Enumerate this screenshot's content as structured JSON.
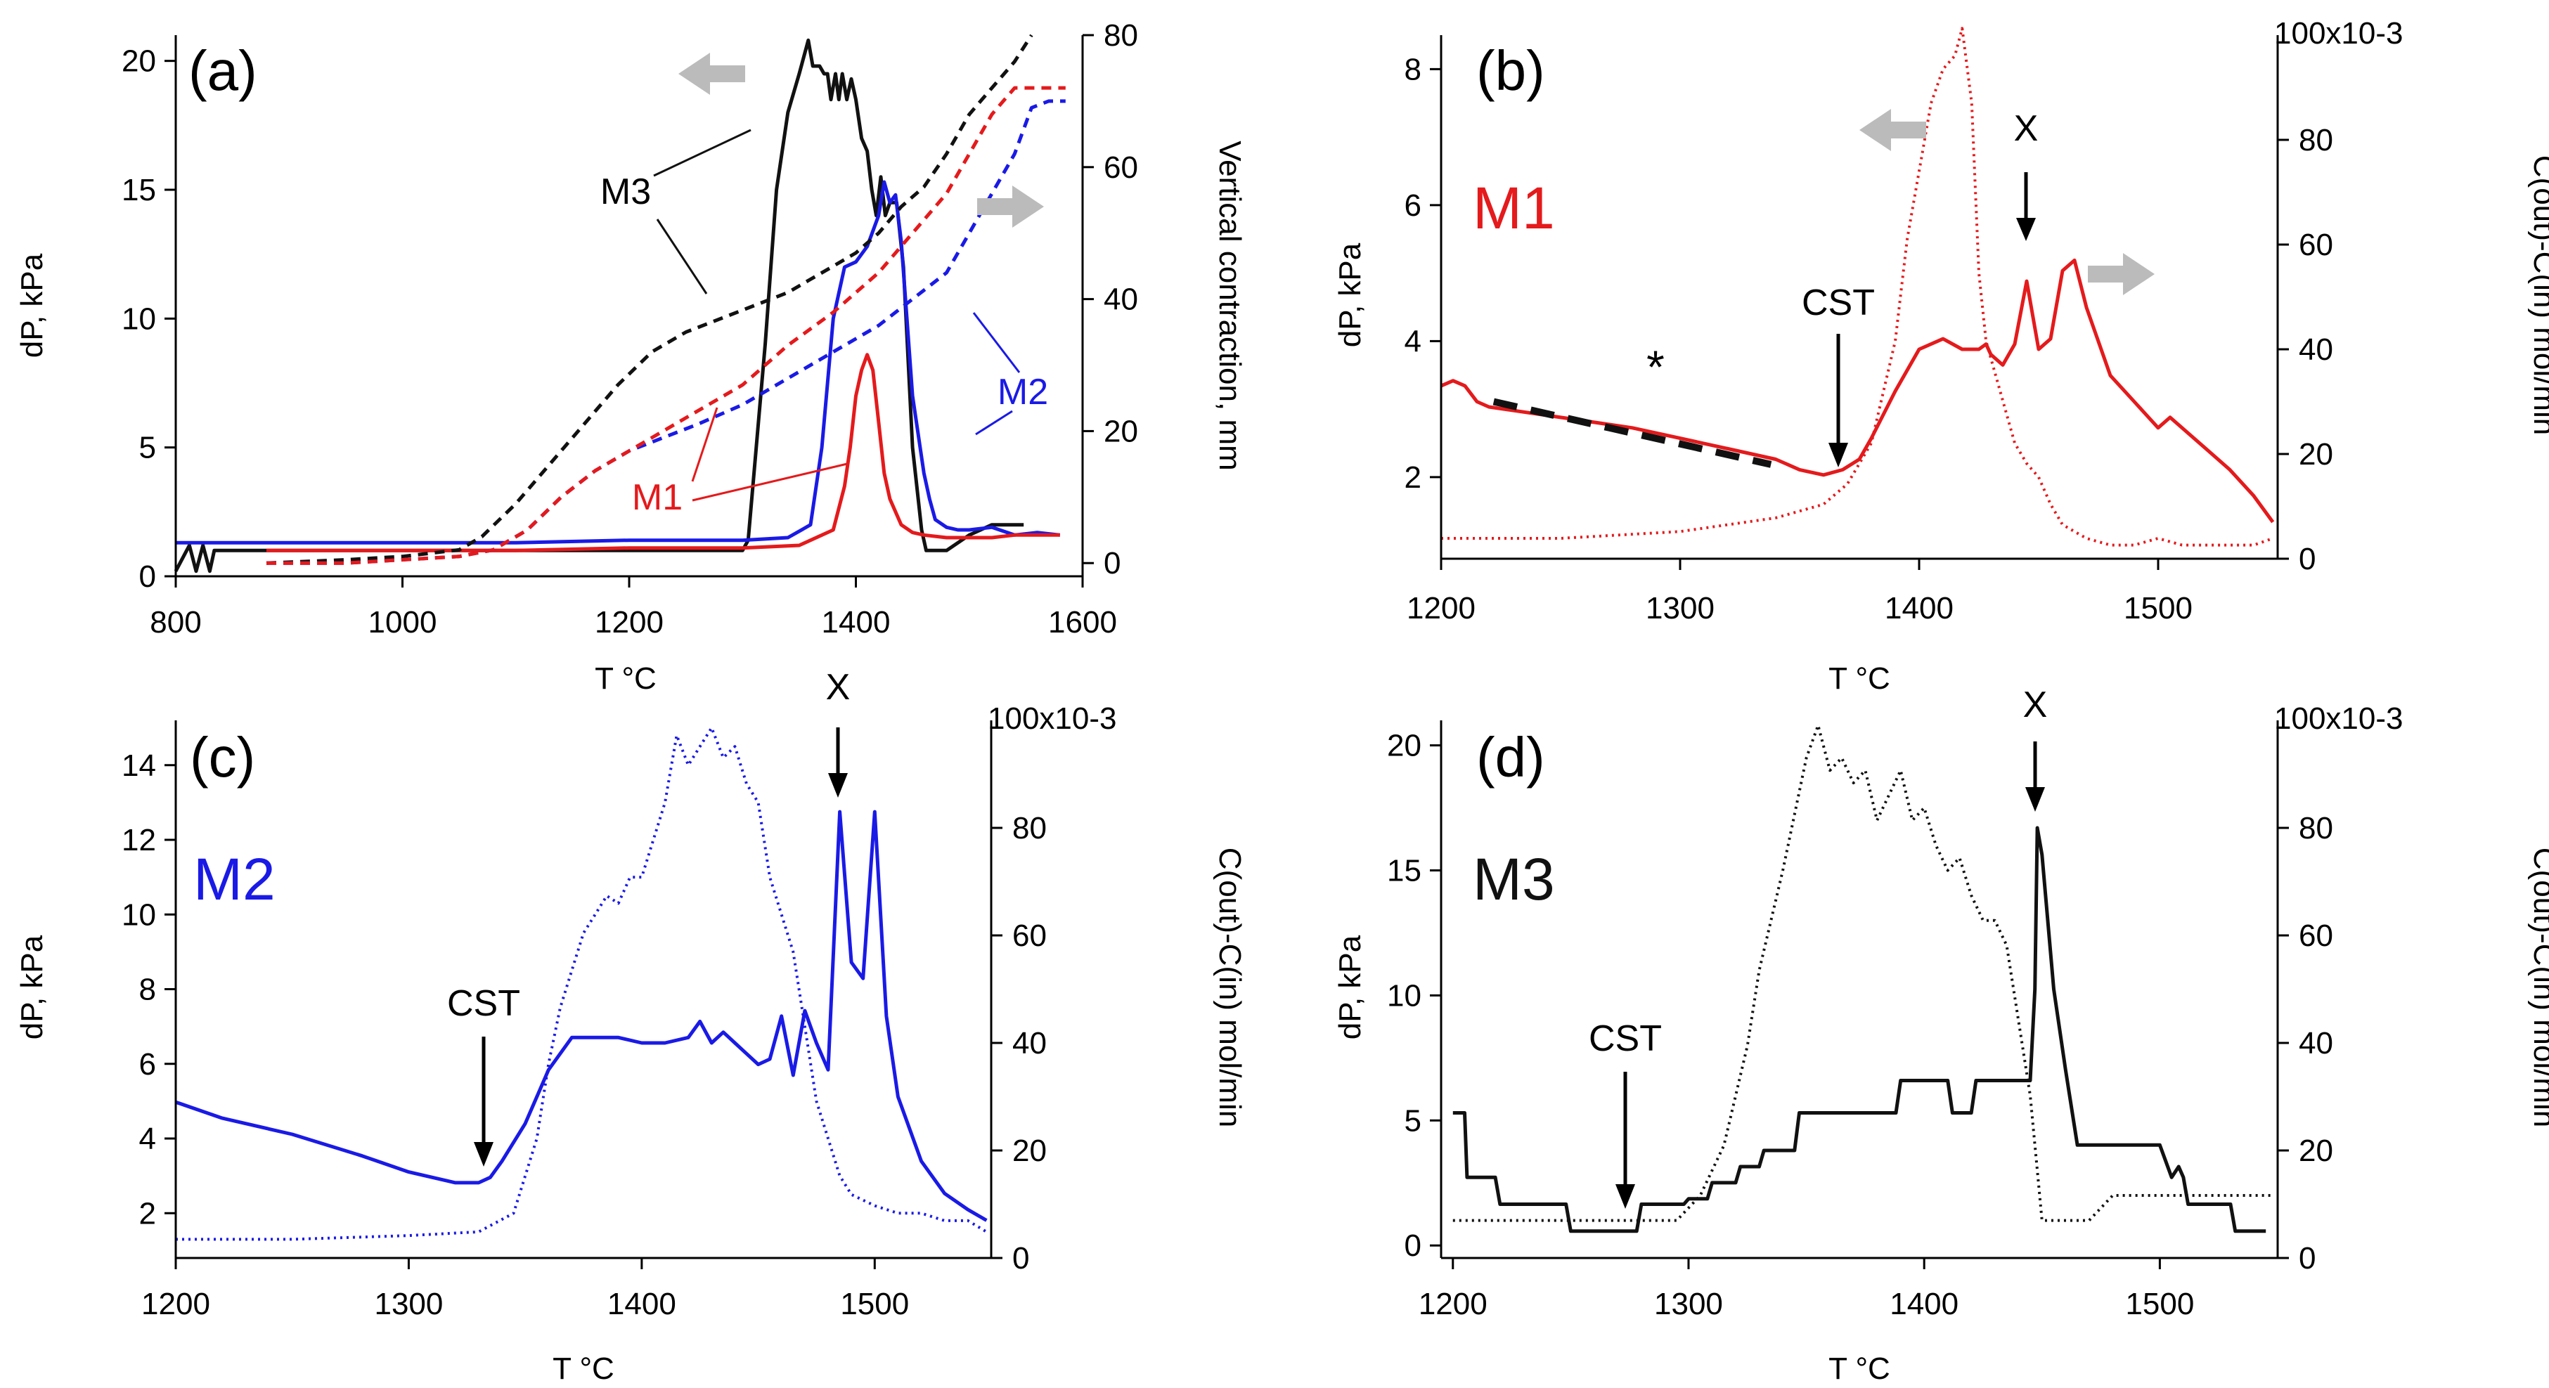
{
  "colors": {
    "M1": "#e41a1c",
    "M2": "#1a1ae6",
    "M3": "#111111",
    "arrow_grey": "#bbbbbb"
  },
  "chart_data": [
    {
      "panel": "(a)",
      "type": "line",
      "xlabel": "T °C",
      "ylabel_left": "dP, kPa",
      "ylabel_right": "Vertical contraction, mm",
      "xlim": [
        800,
        1600
      ],
      "ylim_left": [
        0,
        21
      ],
      "ylim_right": [
        -2,
        80
      ],
      "xticks": [
        800,
        1000,
        1200,
        1400,
        1600
      ],
      "yticks_left": [
        0,
        5,
        10,
        15,
        20
      ],
      "yticks_right": [
        0,
        20,
        40,
        60,
        80
      ],
      "series": [
        {
          "name": "M3",
          "axis": "left",
          "style": "solid",
          "color": "#111111",
          "x": [
            800,
            812,
            818,
            824,
            830,
            834,
            1300,
            1305,
            1320,
            1330,
            1340,
            1350,
            1358,
            1362,
            1368,
            1372,
            1375,
            1378,
            1382,
            1385,
            1388,
            1392,
            1396,
            1400,
            1405,
            1410,
            1414,
            1418,
            1422,
            1426,
            1430,
            1436,
            1442,
            1450,
            1458,
            1462,
            1470,
            1480,
            1500,
            1520,
            1548
          ],
          "y": [
            0.2,
            1.2,
            0.2,
            1.2,
            0.2,
            1.0,
            1.0,
            1.4,
            9.0,
            15.0,
            18.0,
            19.5,
            20.8,
            19.8,
            19.8,
            19.5,
            19.5,
            18.5,
            19.5,
            18.5,
            19.5,
            18.5,
            19.3,
            18.5,
            17.0,
            16.5,
            15.0,
            14.0,
            15.5,
            14.0,
            14.5,
            14.5,
            12.0,
            5.0,
            1.8,
            1.0,
            1.0,
            1.0,
            1.6,
            2.0,
            2.0
          ]
        },
        {
          "name": "M2",
          "axis": "left",
          "style": "solid",
          "color": "#1a1ae6",
          "x": [
            800,
            900,
            1000,
            1100,
            1200,
            1300,
            1340,
            1360,
            1370,
            1380,
            1390,
            1400,
            1410,
            1420,
            1425,
            1430,
            1435,
            1440,
            1445,
            1450,
            1455,
            1460,
            1465,
            1470,
            1480,
            1490,
            1500,
            1520,
            1540,
            1560,
            1580
          ],
          "y": [
            1.3,
            1.3,
            1.3,
            1.3,
            1.4,
            1.4,
            1.5,
            2.0,
            5.0,
            10.0,
            12.0,
            12.2,
            12.8,
            14.0,
            15.3,
            14.5,
            14.8,
            13.0,
            10.0,
            7.0,
            5.5,
            4.0,
            3.0,
            2.2,
            1.9,
            1.8,
            1.8,
            1.9,
            1.6,
            1.7,
            1.6
          ]
        },
        {
          "name": "M1",
          "axis": "left",
          "style": "solid",
          "color": "#e41a1c",
          "x": [
            880,
            1000,
            1100,
            1200,
            1300,
            1350,
            1380,
            1390,
            1395,
            1400,
            1405,
            1410,
            1415,
            1420,
            1425,
            1430,
            1435,
            1440,
            1450,
            1460,
            1480,
            1500,
            1520,
            1540,
            1560,
            1580
          ],
          "y": [
            1.0,
            1.0,
            1.0,
            1.1,
            1.1,
            1.2,
            1.8,
            3.5,
            5.0,
            7.0,
            8.0,
            8.6,
            8.0,
            6.0,
            4.0,
            3.0,
            2.5,
            2.0,
            1.7,
            1.6,
            1.5,
            1.5,
            1.5,
            1.6,
            1.6,
            1.6
          ]
        },
        {
          "name": "M3",
          "axis": "right",
          "style": "dashed",
          "color": "#111111",
          "x": [
            880,
            950,
            1000,
            1050,
            1070,
            1100,
            1130,
            1160,
            1190,
            1220,
            1250,
            1280,
            1310,
            1340,
            1360,
            1380,
            1400,
            1420,
            1440,
            1460,
            1480,
            1500,
            1520,
            1540,
            1555
          ],
          "y": [
            0,
            0.5,
            1.0,
            2.0,
            4.0,
            9.0,
            15.0,
            21.0,
            27.0,
            32.0,
            35.0,
            37.0,
            39.0,
            41.0,
            43.0,
            45.0,
            47.0,
            50.0,
            54.0,
            57.0,
            62.0,
            68.0,
            72.0,
            76.0,
            80.0
          ]
        },
        {
          "name": "M2",
          "axis": "right",
          "style": "dashed",
          "color": "#1a1ae6",
          "x": [
            880,
            950,
            1000,
            1050,
            1080,
            1110,
            1140,
            1170,
            1200,
            1230,
            1260,
            1300,
            1340,
            1380,
            1420,
            1450,
            1480,
            1500,
            1520,
            1540,
            1555,
            1570,
            1585
          ],
          "y": [
            0,
            0,
            0.5,
            1.0,
            2.0,
            5.0,
            10.0,
            14.0,
            17.0,
            19.0,
            21.0,
            24.0,
            28.0,
            32.0,
            36.0,
            40.0,
            44.0,
            50.0,
            56.0,
            62.0,
            69.0,
            70.0,
            70.0
          ]
        },
        {
          "name": "M1",
          "axis": "right",
          "style": "dashed",
          "color": "#e41a1c",
          "x": [
            880,
            950,
            1000,
            1050,
            1080,
            1110,
            1140,
            1170,
            1200,
            1230,
            1260,
            1300,
            1340,
            1380,
            1420,
            1450,
            1480,
            1500,
            1520,
            1540,
            1555,
            1570,
            1585
          ],
          "y": [
            0,
            0,
            0.5,
            1.0,
            2.0,
            5.0,
            10.0,
            14.0,
            17.0,
            20.0,
            23.0,
            27.0,
            33.0,
            38.0,
            44.0,
            50.0,
            56.0,
            62.0,
            68.0,
            72.0,
            72.0,
            72.0,
            72.0
          ]
        }
      ],
      "annotations": [
        "(a)",
        "M3",
        "M2",
        "M1"
      ]
    },
    {
      "panel": "(b)",
      "type": "line",
      "label": "M1",
      "xlabel": "T °C",
      "ylabel_left": "dP, kPa",
      "ylabel_right": "C(out)-C(in) mol/min",
      "xlim": [
        1200,
        1550
      ],
      "ylim_left": [
        0.8,
        8.5
      ],
      "ylim_right": [
        0,
        100
      ],
      "right_axis_top_label": "100x10-3",
      "xticks": [
        1200,
        1300,
        1400,
        1500
      ],
      "yticks_left": [
        2,
        4,
        6,
        8
      ],
      "yticks_right": [
        0,
        20,
        40,
        60,
        80
      ],
      "series": [
        {
          "name": "M1 dP",
          "axis": "left",
          "style": "dotted",
          "color": "#e41a1c",
          "x": [
            1200,
            1250,
            1300,
            1340,
            1360,
            1370,
            1380,
            1390,
            1395,
            1400,
            1405,
            1410,
            1415,
            1418,
            1422,
            1425,
            1428,
            1432,
            1436,
            1440,
            1445,
            1450,
            1455,
            1460,
            1470,
            1480,
            1490,
            1500,
            1510,
            1520,
            1530,
            1540,
            1548
          ],
          "y": [
            1.1,
            1.1,
            1.2,
            1.4,
            1.6,
            1.9,
            2.5,
            4.0,
            5.5,
            6.5,
            7.5,
            8.0,
            8.2,
            8.6,
            7.5,
            5.0,
            4.0,
            3.5,
            3.0,
            2.5,
            2.2,
            2.0,
            1.6,
            1.3,
            1.1,
            1.0,
            1.0,
            1.1,
            1.0,
            1.0,
            1.0,
            1.0,
            1.1
          ]
        },
        {
          "name": "M1 C(out)-C(in)",
          "axis": "right",
          "style": "solid",
          "color": "#e41a1c",
          "x": [
            1200,
            1205,
            1210,
            1215,
            1220,
            1250,
            1280,
            1300,
            1320,
            1340,
            1350,
            1360,
            1368,
            1375,
            1380,
            1390,
            1400,
            1410,
            1418,
            1425,
            1428,
            1430,
            1435,
            1440,
            1445,
            1450,
            1455,
            1460,
            1465,
            1470,
            1480,
            1490,
            1500,
            1505,
            1510,
            1520,
            1530,
            1540,
            1548
          ],
          "y": [
            33,
            34,
            33,
            30,
            29,
            27,
            25,
            23,
            21,
            19,
            17,
            16,
            17,
            19,
            23,
            32,
            40,
            42,
            40,
            40,
            41,
            39,
            37,
            41,
            53,
            40,
            42,
            55,
            57,
            48,
            35,
            30,
            25,
            27,
            25,
            21,
            17,
            12,
            7
          ]
        },
        {
          "name": "trend",
          "axis": "right",
          "style": "dashed-thick",
          "color": "#111111",
          "x": [
            1222,
            1338
          ],
          "y": [
            30,
            18
          ]
        }
      ],
      "annotations": [
        "(b)",
        "M1",
        "CST",
        "X",
        "*"
      ]
    },
    {
      "panel": "(c)",
      "type": "line",
      "label": "M2",
      "xlabel": "T °C",
      "ylabel_left": "dP, kPa",
      "ylabel_right": "C(out)-C(in) mol/min",
      "xlim": [
        1200,
        1550
      ],
      "ylim_left": [
        0.8,
        15.2
      ],
      "ylim_right": [
        0,
        100
      ],
      "right_axis_top_label": "100x10-3",
      "xticks": [
        1200,
        1300,
        1400,
        1500
      ],
      "yticks_left": [
        2,
        4,
        6,
        8,
        10,
        12,
        14
      ],
      "yticks_right": [
        0,
        20,
        40,
        60,
        80
      ],
      "series": [
        {
          "name": "M2 dP",
          "axis": "left",
          "style": "dotted",
          "color": "#1a1ae6",
          "x": [
            1200,
            1250,
            1300,
            1330,
            1345,
            1355,
            1360,
            1365,
            1370,
            1375,
            1380,
            1385,
            1390,
            1395,
            1400,
            1405,
            1410,
            1415,
            1420,
            1425,
            1430,
            1435,
            1440,
            1445,
            1450,
            1455,
            1460,
            1465,
            1470,
            1475,
            1480,
            1485,
            1490,
            1500,
            1510,
            1520,
            1530,
            1540,
            1548
          ],
          "y": [
            1.3,
            1.3,
            1.4,
            1.5,
            2.0,
            4.0,
            6.0,
            7.5,
            8.5,
            9.5,
            10.0,
            10.5,
            10.3,
            11.0,
            11.0,
            12.0,
            13.0,
            14.8,
            14.0,
            14.5,
            15.0,
            14.2,
            14.5,
            13.5,
            13.0,
            11.0,
            10.0,
            9.0,
            7.0,
            5.0,
            4.0,
            3.0,
            2.5,
            2.2,
            2.0,
            2.0,
            1.8,
            1.8,
            1.5
          ]
        },
        {
          "name": "M2 C(out)-C(in)",
          "axis": "right",
          "style": "solid",
          "color": "#1a1ae6",
          "x": [
            1200,
            1220,
            1250,
            1280,
            1300,
            1320,
            1330,
            1335,
            1340,
            1350,
            1360,
            1370,
            1380,
            1390,
            1400,
            1410,
            1420,
            1425,
            1430,
            1435,
            1440,
            1445,
            1450,
            1455,
            1460,
            1465,
            1470,
            1475,
            1480,
            1485,
            1490,
            1495,
            1500,
            1505,
            1510,
            1520,
            1530,
            1540,
            1548
          ],
          "y": [
            29,
            26,
            23,
            19,
            16,
            14,
            14,
            15,
            18,
            25,
            35,
            41,
            41,
            41,
            40,
            40,
            41,
            44,
            40,
            42,
            40,
            38,
            36,
            37,
            45,
            34,
            46,
            40,
            35,
            83,
            55,
            52,
            83,
            45,
            30,
            18,
            12,
            9,
            7
          ]
        }
      ],
      "annotations": [
        "(c)",
        "M2",
        "CST",
        "X"
      ]
    },
    {
      "panel": "(d)",
      "type": "line",
      "label": "M3",
      "xlabel": "T °C",
      "ylabel_left": "dP, kPa",
      "ylabel_right": "C(out)-C(in) mol/min",
      "xlim": [
        1195,
        1550
      ],
      "ylim_left": [
        -0.5,
        21
      ],
      "ylim_right": [
        0,
        100
      ],
      "right_axis_top_label": "100x10-3",
      "xticks": [
        1200,
        1300,
        1400,
        1500
      ],
      "yticks_left": [
        0,
        5,
        10,
        15,
        20
      ],
      "yticks_right": [
        0,
        20,
        40,
        60,
        80
      ],
      "series": [
        {
          "name": "M3 dP",
          "axis": "left",
          "style": "dotted",
          "color": "#111111",
          "x": [
            1200,
            1250,
            1295,
            1305,
            1315,
            1325,
            1330,
            1340,
            1350,
            1355,
            1360,
            1365,
            1370,
            1375,
            1380,
            1385,
            1390,
            1395,
            1400,
            1405,
            1410,
            1415,
            1420,
            1425,
            1430,
            1435,
            1440,
            1445,
            1448,
            1450,
            1455,
            1460,
            1465,
            1470,
            1480,
            1500,
            1548
          ],
          "y": [
            1.0,
            1.0,
            1.0,
            2.0,
            4.0,
            8.0,
            11.0,
            15.0,
            19.5,
            20.8,
            19.0,
            19.5,
            18.5,
            19.0,
            17.0,
            18.0,
            19.0,
            17.0,
            17.5,
            16.0,
            15.0,
            15.5,
            14.0,
            13.0,
            13.0,
            12.0,
            9.0,
            6.0,
            3.0,
            1.0,
            1.0,
            1.0,
            1.0,
            1.0,
            2.0,
            2.0,
            2.0
          ]
        },
        {
          "name": "M3 C(out)-C(in)",
          "axis": "right",
          "style": "solid",
          "color": "#111111",
          "x": [
            1200,
            1205,
            1206,
            1218,
            1220,
            1248,
            1250,
            1278,
            1280,
            1298,
            1300,
            1308,
            1310,
            1320,
            1322,
            1330,
            1332,
            1345,
            1347,
            1388,
            1390,
            1410,
            1412,
            1420,
            1422,
            1440,
            1445,
            1447,
            1448,
            1450,
            1455,
            1460,
            1465,
            1475,
            1500,
            1505,
            1508,
            1510,
            1512,
            1520,
            1525,
            1530,
            1532,
            1545
          ],
          "y": [
            27,
            27,
            15,
            15,
            10,
            10,
            5,
            5,
            10,
            10,
            11,
            11,
            14,
            14,
            17,
            17,
            20,
            20,
            27,
            27,
            33,
            33,
            27,
            27,
            33,
            33,
            33,
            50,
            80,
            75,
            50,
            35,
            21,
            21,
            21,
            15,
            17,
            15,
            10,
            10,
            10,
            10,
            5,
            5
          ]
        }
      ],
      "annotations": [
        "(d)",
        "M3",
        "CST",
        "X"
      ]
    }
  ]
}
